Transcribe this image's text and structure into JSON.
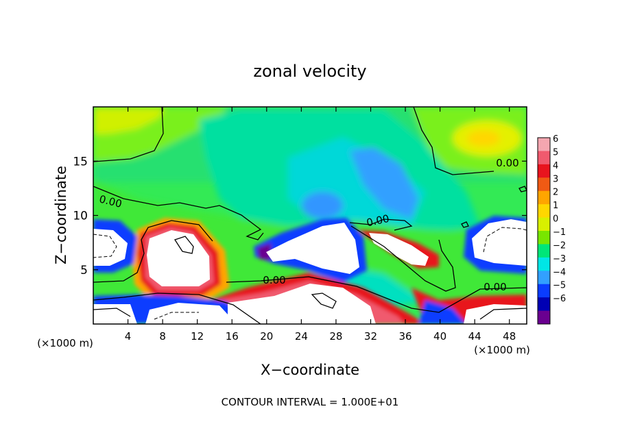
{
  "chart_data": {
    "type": "heatmap",
    "title": "zonal velocity",
    "xlabel": "X−coordinate",
    "ylabel": "Z−coordinate",
    "x_units": "(×1000 m)",
    "x_units_right": "(×1000 m)",
    "xlim": [
      0,
      50
    ],
    "ylim": [
      0,
      20
    ],
    "x_ticks": [
      4,
      8,
      12,
      16,
      20,
      24,
      28,
      32,
      36,
      40,
      44,
      48
    ],
    "x_tick_labels": [
      "4",
      "8",
      "12",
      "16",
      "20",
      "24",
      "28",
      "32",
      "36",
      "40",
      "44",
      "48"
    ],
    "y_ticks": [
      5,
      10,
      15
    ],
    "y_tick_labels": [
      "5",
      "10",
      "15"
    ],
    "colorbar": {
      "levels": [
        6,
        5,
        4,
        3,
        2,
        1,
        0,
        -1,
        -2,
        -3,
        -4,
        -5,
        -6
      ],
      "labels": [
        "6",
        "5",
        "4",
        "3",
        "2",
        "1",
        "0",
        "−1",
        "−2",
        "−3",
        "−4",
        "−5",
        "−6"
      ],
      "colors": [
        "#f4a6b0",
        "#f05a6e",
        "#e8141e",
        "#f05a14",
        "#ffa500",
        "#ffd700",
        "#d8f000",
        "#78e600",
        "#00e678",
        "#00e6e6",
        "#32a0ff",
        "#0a3cff",
        "#0000b4",
        "#6a0090"
      ]
    },
    "contour_labels": [
      "0.00",
      "0.00",
      "0.00",
      "0.00",
      "0.00"
    ],
    "footer": "CONTOUR INTERVAL = 1.000E+01"
  }
}
